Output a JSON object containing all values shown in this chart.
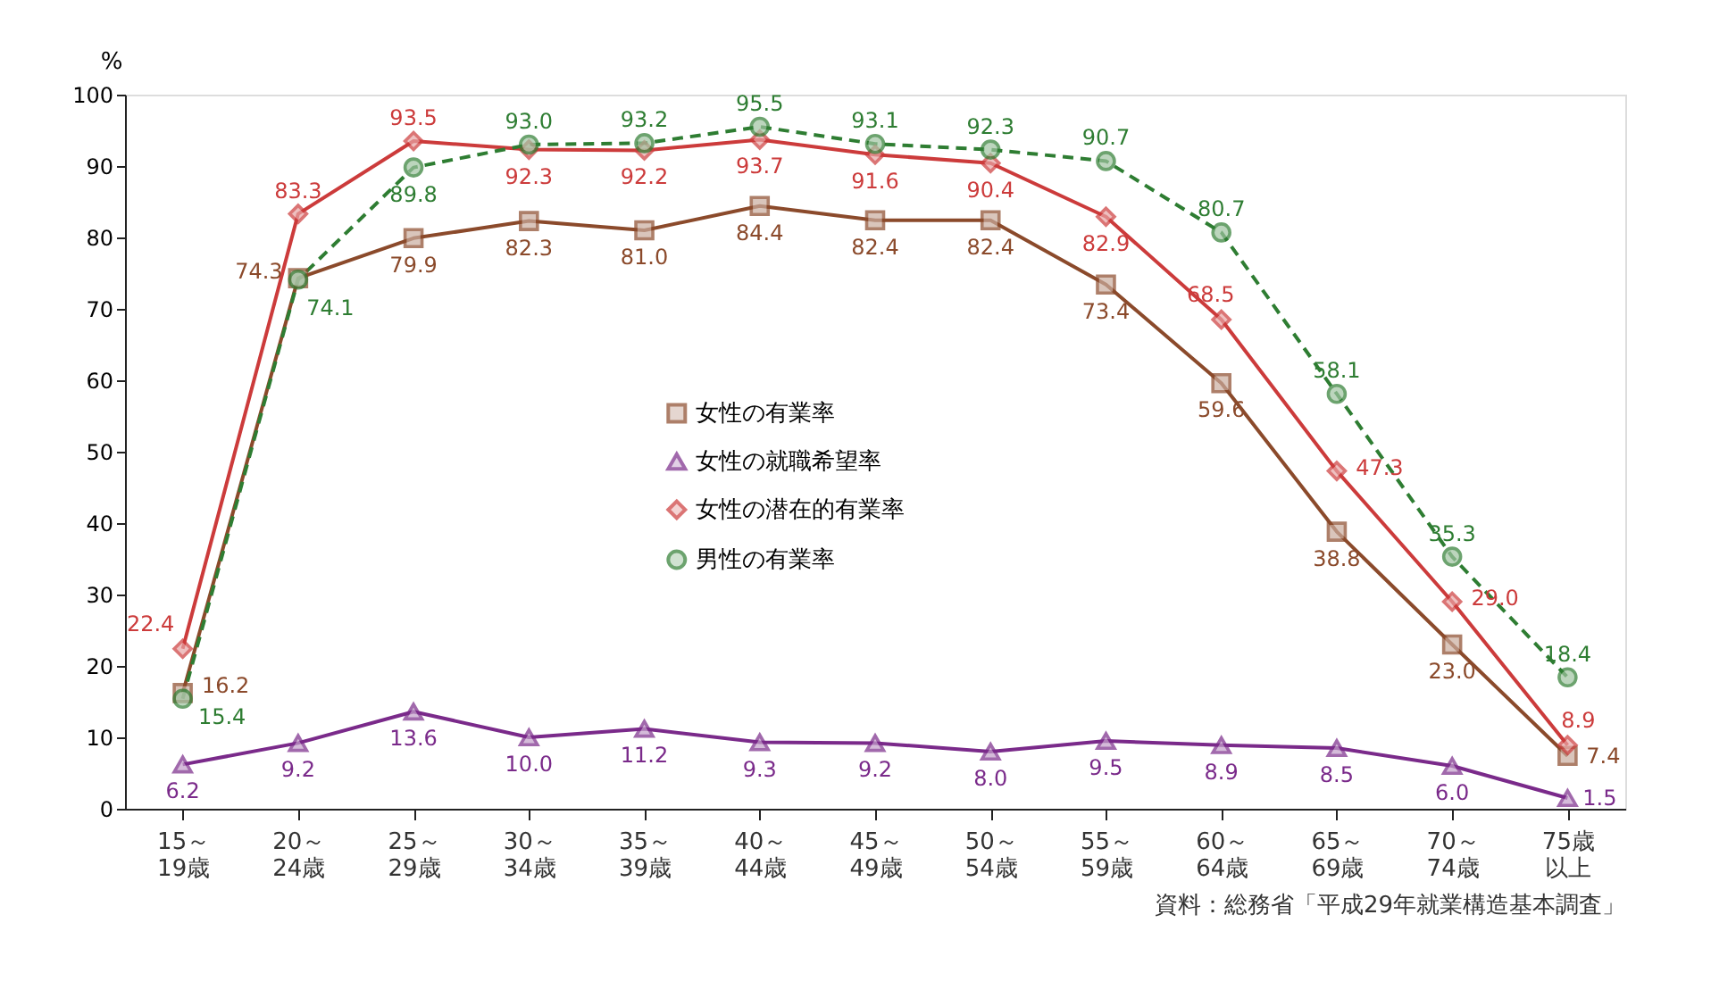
{
  "chart_data": {
    "type": "line",
    "ylabel": "%",
    "categories": [
      "15～19歳",
      "20～24歳",
      "25～29歳",
      "30～34歳",
      "35～39歳",
      "40～44歳",
      "45～49歳",
      "50～54歳",
      "55～59歳",
      "60～64歳",
      "65～69歳",
      "70～74歳",
      "75歳以上"
    ],
    "series": [
      {
        "name": "女性の有業率",
        "color": "#8b4a2b",
        "marker": "square",
        "line_style": "solid",
        "values": [
          16.2,
          74.3,
          79.9,
          82.3,
          81.0,
          84.4,
          82.4,
          82.4,
          73.4,
          59.6,
          38.8,
          23.0,
          7.4
        ],
        "value_labels": [
          "16.2",
          "74.3",
          "79.9",
          "82.3",
          "81.0",
          "84.4",
          "82.4",
          "82.4",
          "73.4",
          "59.6",
          "38.8",
          "23.0",
          "7.4"
        ]
      },
      {
        "name": "女性の就職希望率",
        "color": "#7a2a8a",
        "marker": "triangle",
        "line_style": "solid",
        "values": [
          6.2,
          9.2,
          13.6,
          10.0,
          11.2,
          9.3,
          9.2,
          8.0,
          9.5,
          8.9,
          8.5,
          6.0,
          1.5
        ],
        "value_labels": [
          "6.2",
          "9.2",
          "13.6",
          "10.0",
          "11.2",
          "9.3",
          "9.2",
          "8.0",
          "9.5",
          "8.9",
          "8.5",
          "6.0",
          "1.5"
        ]
      },
      {
        "name": "女性の潜在的有業率",
        "color": "#cc3b3b",
        "marker": "diamond",
        "line_style": "solid",
        "values": [
          22.4,
          83.3,
          93.5,
          92.3,
          92.2,
          93.7,
          91.6,
          90.4,
          82.9,
          68.5,
          47.3,
          29.0,
          8.9
        ],
        "value_labels": [
          "22.4",
          "83.3",
          "93.5",
          "92.3",
          "92.2",
          "93.7",
          "91.6",
          "90.4",
          "82.9",
          "68.5",
          "47.3",
          "29.0",
          "8.9"
        ]
      },
      {
        "name": "男性の有業率",
        "color": "#2e7d32",
        "marker": "circle",
        "line_style": "dashed",
        "values": [
          15.4,
          74.1,
          89.8,
          93.0,
          93.2,
          95.5,
          93.1,
          92.3,
          90.7,
          80.7,
          58.1,
          35.3,
          18.4
        ],
        "value_labels": [
          "15.4",
          "74.1",
          "89.8",
          "93.0",
          "93.2",
          "95.5",
          "93.1",
          "92.3",
          "90.7",
          "80.7",
          "58.1",
          "35.3",
          "18.4"
        ]
      }
    ],
    "ylim": [
      0,
      100
    ],
    "yticks": [
      0,
      10,
      20,
      30,
      40,
      50,
      60,
      70,
      80,
      90,
      100
    ],
    "legend": "center",
    "annotations": [
      "資料：総務省「平成29年就業構造基本調査」"
    ]
  }
}
